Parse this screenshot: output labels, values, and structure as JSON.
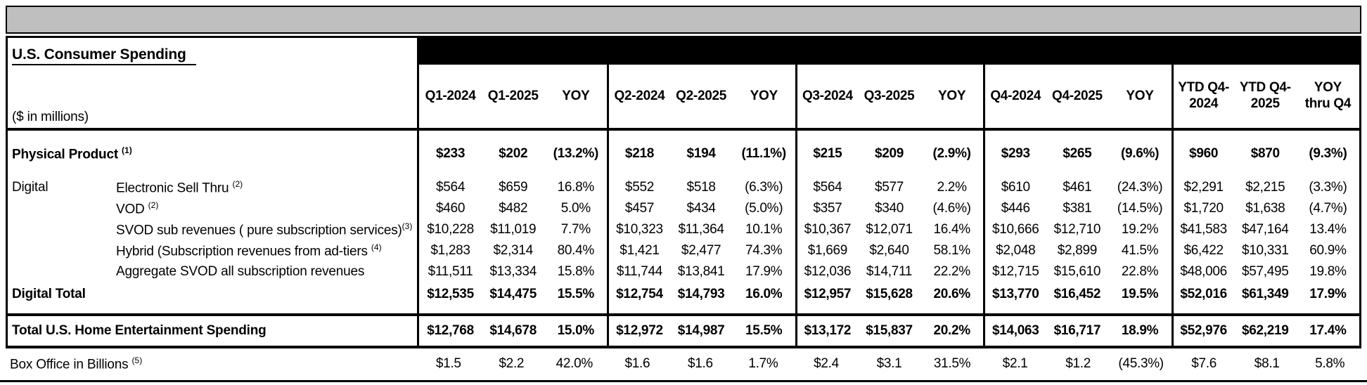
{
  "table": {
    "title": "U.S. Consumer Spending",
    "units_note": "($ in millions)",
    "columns": [
      "Q1-2024",
      "Q1-2025",
      "YOY",
      "Q2-2024",
      "Q2-2025",
      "YOY",
      "Q3-2024",
      "Q3-2025",
      "YOY",
      "Q4-2024",
      "Q4-2025",
      "YOY",
      "YTD Q4-\n2024",
      "YTD Q4-\n2025",
      "YOY\nthru Q4"
    ],
    "rows": [
      {
        "kind": "spacer"
      },
      {
        "kind": "major",
        "bold": true,
        "label": "Physical Product ",
        "sup": "(1)",
        "values": [
          "$233",
          "$202",
          "(13.2%)",
          "$218",
          "$194",
          "(11.1%)",
          "$215",
          "$209",
          "(2.9%)",
          "$293",
          "$265",
          "(9.6%)",
          "$960",
          "$870",
          "(9.3%)"
        ]
      },
      {
        "kind": "spacer"
      },
      {
        "kind": "item",
        "indent": true,
        "section": "Digital",
        "label": "Electronic Sell Thru ",
        "sup": "(2)",
        "values": [
          "$564",
          "$659",
          "16.8%",
          "$552",
          "$518",
          "(6.3%)",
          "$564",
          "$577",
          "2.2%",
          "$610",
          "$461",
          "(24.3%)",
          "$2,291",
          "$2,215",
          "(3.3%)"
        ]
      },
      {
        "kind": "item",
        "indent": true,
        "section": "",
        "label": "VOD ",
        "sup": "(2)",
        "values": [
          "$460",
          "$482",
          "5.0%",
          "$457",
          "$434",
          "(5.0%)",
          "$357",
          "$340",
          "(4.6%)",
          "$446",
          "$381",
          "(14.5%)",
          "$1,720",
          "$1,638",
          "(4.7%)"
        ]
      },
      {
        "kind": "item",
        "indent": true,
        "section": "",
        "label": "SVOD sub revenues ( pure subscription services)",
        "sup": "(3)",
        "values": [
          "$10,228",
          "$11,019",
          "7.7%",
          "$10,323",
          "$11,364",
          "10.1%",
          "$10,367",
          "$12,071",
          "16.4%",
          "$10,666",
          "$12,710",
          "19.2%",
          "$41,583",
          "$47,164",
          "13.4%"
        ]
      },
      {
        "kind": "item",
        "indent": true,
        "section": "",
        "label": "Hybrid (Subscription revenues from ad-tiers ",
        "sup": "(4)",
        "values": [
          "$1,283",
          "$2,314",
          "80.4%",
          "$1,421",
          "$2,477",
          "74.3%",
          "$1,669",
          "$2,640",
          "58.1%",
          "$2,048",
          "$2,899",
          "41.5%",
          "$6,422",
          "$10,331",
          "60.9%"
        ]
      },
      {
        "kind": "item",
        "indent": true,
        "section": "",
        "label": "Aggregate SVOD all subscription revenues",
        "values": [
          "$11,511",
          "$13,334",
          "15.8%",
          "$11,744",
          "$13,841",
          "17.9%",
          "$12,036",
          "$14,711",
          "22.2%",
          "$12,715",
          "$15,610",
          "22.8%",
          "$48,006",
          "$57,495",
          "19.8%"
        ]
      },
      {
        "kind": "major",
        "bold": true,
        "label": "Digital Total",
        "values": [
          "$12,535",
          "$14,475",
          "15.5%",
          "$12,754",
          "$14,793",
          "16.0%",
          "$12,957",
          "$15,628",
          "20.6%",
          "$13,770",
          "$16,452",
          "19.5%",
          "$52,016",
          "$61,349",
          "17.9%"
        ]
      },
      {
        "kind": "pad"
      }
    ],
    "total_row": {
      "label": "Total U.S. Home Entertainment Spending",
      "values": [
        "$12,768",
        "$14,678",
        "15.0%",
        "$12,972",
        "$14,987",
        "15.5%",
        "$13,172",
        "$15,837",
        "20.2%",
        "$14,063",
        "$16,717",
        "18.9%",
        "$52,976",
        "$62,219",
        "17.4%"
      ]
    },
    "box_office_row": {
      "label": "Box Office in Billions ",
      "sup": "(5)",
      "values": [
        "$1.5",
        "$2.2",
        "42.0%",
        "$1.6",
        "$1.6",
        "1.7%",
        "$2.4",
        "$3.1",
        "31.5%",
        "$2.1",
        "$1.2",
        "(45.3%)",
        "$7.6",
        "$8.1",
        "5.8%"
      ]
    },
    "colors": {
      "gray_bar": "#bfbfbf",
      "band": "#000000",
      "text": "#000000"
    }
  }
}
